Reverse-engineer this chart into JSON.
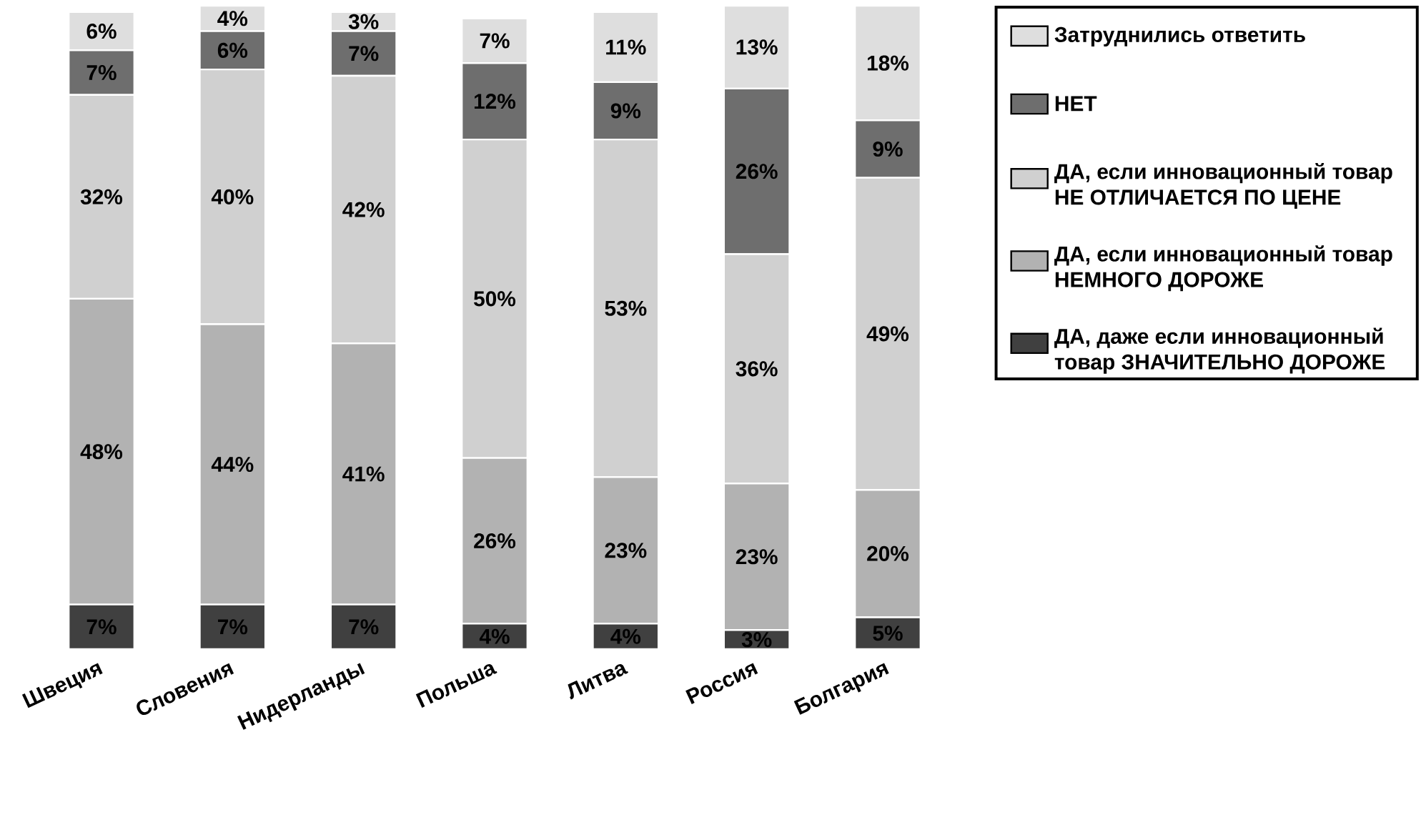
{
  "chart_data": {
    "type": "bar",
    "stacked": true,
    "legend": "right",
    "categories": [
      "Швеция",
      "Словения",
      "Нидерланды",
      "Польша",
      "Литва",
      "Россия",
      "Болгария"
    ],
    "series": [
      {
        "name": "ДА, даже если инновационный товар ЗНАЧИТЕЛЬНО ДОРОЖЕ",
        "color": "#404040",
        "values": [
          7,
          7,
          7,
          4,
          4,
          3,
          5
        ],
        "value_labels": [
          "7%",
          "7%",
          "7%",
          "4%",
          "4%",
          "3%",
          "5%"
        ]
      },
      {
        "name": "ДА, если инновационный товар НЕМНОГО ДОРОЖЕ",
        "color": "#b2b2b2",
        "values": [
          48,
          44,
          41,
          26,
          23,
          23,
          20
        ],
        "value_labels": [
          "48%",
          "44%",
          "41%",
          "26%",
          "23%",
          "23%",
          "20%"
        ]
      },
      {
        "name": "ДА, если инновационный товар НЕ ОТЛИЧАЕТСЯ ПО ЦЕНЕ",
        "color": "#d0d0d0",
        "values": [
          32,
          40,
          42,
          50,
          53,
          36,
          49
        ],
        "value_labels": [
          "32%",
          "40%",
          "42%",
          "50%",
          "53%",
          "36%",
          "49%"
        ]
      },
      {
        "name": "НЕТ",
        "color": "#6e6e6e",
        "values": [
          7,
          6,
          7,
          12,
          9,
          26,
          9
        ],
        "value_labels": [
          "7%",
          "6%",
          "7%",
          "12%",
          "9%",
          "26%",
          "9%"
        ]
      },
      {
        "name": "Затруднились ответить",
        "color": "#dedede",
        "values": [
          6,
          4,
          3,
          7,
          11,
          13,
          18
        ],
        "value_labels": [
          "6%",
          "4%",
          "3%",
          "7%",
          "11%",
          "13%",
          "18%"
        ]
      }
    ]
  }
}
